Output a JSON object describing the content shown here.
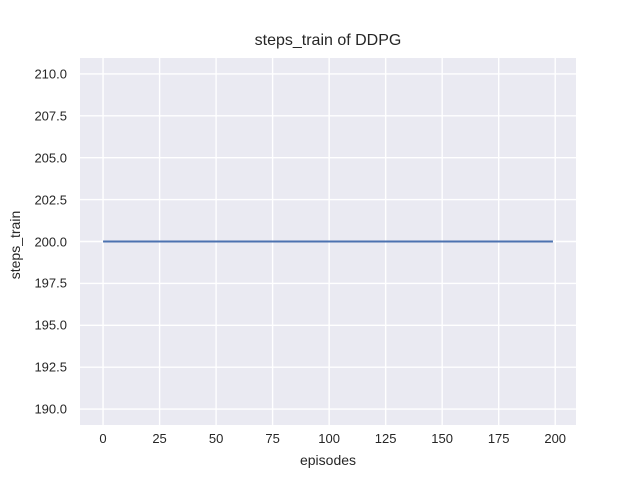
{
  "chart_data": {
    "type": "line",
    "title": "steps_train of DDPG",
    "xlabel": "episodes",
    "ylabel": "steps_train",
    "xlim": [
      -10.2,
      209.2
    ],
    "ylim": [
      189.05,
      210.95
    ],
    "xticks": [
      0,
      25,
      50,
      75,
      100,
      125,
      150,
      175,
      200
    ],
    "xtick_labels": [
      "0",
      "25",
      "50",
      "75",
      "100",
      "125",
      "150",
      "175",
      "200"
    ],
    "yticks": [
      190.0,
      192.5,
      195.0,
      197.5,
      200.0,
      202.5,
      205.0,
      207.5,
      210.0
    ],
    "ytick_labels": [
      "190.0",
      "192.5",
      "195.0",
      "197.5",
      "200.0",
      "202.5",
      "205.0",
      "207.5",
      "210.0"
    ],
    "grid": true,
    "legend": false,
    "plot_background": "#EAEAF2",
    "grid_color": "#FFFFFF",
    "figure_background": "#FFFFFF",
    "text_color": "#262626",
    "series": [
      {
        "name": "steps_train",
        "color": "#4C72B0",
        "x": [
          0,
          199
        ],
        "y": [
          200,
          200
        ]
      }
    ]
  }
}
